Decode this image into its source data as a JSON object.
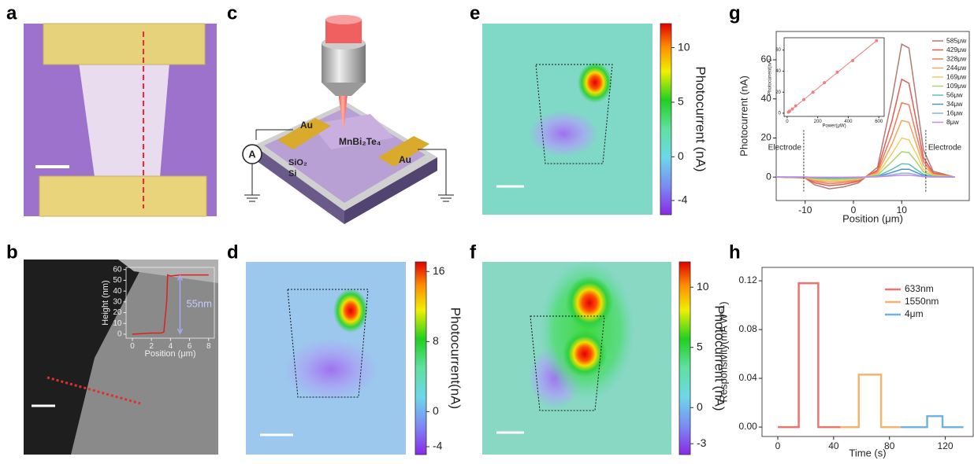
{
  "panel_labels": [
    "a",
    "b",
    "c",
    "d",
    "e",
    "f",
    "g",
    "h"
  ],
  "schematic": {
    "labels": [
      "Au",
      "Au",
      "MnBi₂Te₄",
      "SiO₂",
      "Si",
      "A"
    ]
  },
  "colorbars": [
    {
      "label": "Photocurrent(nA)",
      "lim": [
        -4.9,
        17.1
      ],
      "ticks": [
        -4,
        0,
        8,
        16
      ]
    },
    {
      "label": "Photocurrent (nA)",
      "lim": [
        -5.3,
        12.2
      ],
      "ticks": [
        -4,
        0,
        5,
        10
      ]
    },
    {
      "label": "Photocurrent (nA)",
      "lim": [
        -3.9,
        12.1
      ],
      "ticks": [
        -3,
        0,
        5,
        10
      ]
    }
  ],
  "chart_data": [
    {
      "type": "line",
      "xlabel": "Position (μm)",
      "ylabel": "Photocurrent (nA)",
      "xlim": [
        -16,
        24
      ],
      "ylim": [
        -12,
        74.5
      ],
      "xticks": [
        -10,
        0,
        10
      ],
      "yticks": [
        0,
        20,
        40,
        60
      ],
      "legend": "upper right",
      "x": [
        -16,
        -10,
        -8,
        -5,
        -2,
        1,
        5,
        8,
        10,
        11.5,
        13,
        14.5,
        16.5,
        21
      ],
      "series": [
        {
          "name": "585μw",
          "color": "#b47a74",
          "values": [
            0,
            -0.5,
            -4,
            -6,
            -5,
            -3,
            5,
            40,
            68,
            66,
            40,
            14,
            3,
            0
          ]
        },
        {
          "name": "429μw",
          "color": "#e35a58",
          "values": [
            0,
            -0.4,
            -3,
            -4.4,
            -3.7,
            -2.2,
            3.6,
            29,
            50,
            48,
            29,
            10,
            2.2,
            0
          ]
        },
        {
          "name": "328μw",
          "color": "#f27a55",
          "values": [
            0,
            -0.3,
            -2.2,
            -3.4,
            -2.8,
            -1.7,
            2.8,
            22,
            38,
            37,
            22,
            8,
            1.7,
            0
          ]
        },
        {
          "name": "244μw",
          "color": "#f5a55a",
          "values": [
            0,
            -0.2,
            -1.7,
            -2.5,
            -2.1,
            -1.3,
            2.1,
            17,
            29,
            28,
            17,
            6,
            1.3,
            0
          ]
        },
        {
          "name": "169μw",
          "color": "#efd060",
          "values": [
            0,
            -0.1,
            -1.2,
            -1.7,
            -1.5,
            -0.9,
            1.5,
            12,
            20,
            19,
            12,
            4,
            0.9,
            0
          ]
        },
        {
          "name": "109μw",
          "color": "#a6d46e",
          "values": [
            0,
            -0.1,
            -0.8,
            -1.1,
            -1,
            -0.6,
            1,
            8,
            13,
            12.5,
            8,
            2.7,
            0.6,
            0
          ]
        },
        {
          "name": "56μw",
          "color": "#5cc2b4",
          "values": [
            0,
            0,
            -0.4,
            -0.6,
            -0.5,
            -0.3,
            0.5,
            4,
            6.8,
            6.6,
            4,
            1.4,
            0.3,
            0
          ]
        },
        {
          "name": "34μw",
          "color": "#4f8fd4",
          "values": [
            0,
            0,
            -0.2,
            -0.4,
            -0.3,
            -0.2,
            0.3,
            2.4,
            4,
            4,
            2.4,
            0.8,
            0.2,
            0
          ]
        },
        {
          "name": "16μw",
          "color": "#86b6e6",
          "values": [
            0,
            0,
            -0.1,
            -0.2,
            -0.2,
            -0.1,
            0.2,
            1.2,
            2,
            2,
            1.2,
            0.4,
            0.1,
            0
          ]
        },
        {
          "name": "8μw",
          "color": "#c48ae6",
          "values": [
            0,
            0,
            -0.1,
            -0.1,
            -0.1,
            0,
            0.1,
            0.6,
            1,
            1,
            0.6,
            0.2,
            0,
            0
          ]
        }
      ],
      "annotations": [
        {
          "text": "Electrode",
          "x": -10.3
        },
        {
          "text": "Electrode",
          "x": 15
        }
      ]
    },
    {
      "type": "scatter",
      "xlabel": "Power(μW)",
      "ylabel": "Photocurrent(nA)",
      "fit": true,
      "xlim": [
        -20,
        635
      ],
      "ylim": [
        -3,
        71.7
      ],
      "xticks": [
        0,
        200,
        400,
        600
      ],
      "yticks": [
        0,
        20,
        40,
        60
      ],
      "color": "#f07f7f",
      "x": [
        8,
        16,
        34,
        56,
        109,
        169,
        244,
        328,
        429,
        585
      ],
      "values": [
        1,
        2,
        4,
        7,
        13,
        20,
        29,
        39,
        50,
        69
      ]
    },
    {
      "type": "line",
      "xlabel": "Time (s)",
      "ylabel": "Responsivity(mA W⁻¹)",
      "xlim": [
        -11.3,
        140
      ],
      "ylim": [
        -0.0077,
        0.131
      ],
      "xticks": [
        0,
        40,
        80,
        120
      ],
      "yticks": [
        {
          "value": 0,
          "label": "0.00"
        },
        0.04,
        0.08,
        0.12
      ],
      "legend": "upper right",
      "series": [
        {
          "name": "633nm",
          "color": "#ef7470",
          "x": [
            0,
            15,
            15,
            29,
            29,
            45
          ],
          "values": [
            0,
            0,
            0.118,
            0.118,
            0,
            0
          ]
        },
        {
          "name": "1550nm",
          "color": "#f6b46a",
          "x": [
            45,
            58,
            58,
            74,
            74,
            88
          ],
          "values": [
            0,
            0,
            0.043,
            0.043,
            0,
            0
          ]
        },
        {
          "name": "4μm",
          "color": "#6fb3e3",
          "x": [
            88,
            107,
            107,
            118,
            118,
            133
          ],
          "values": [
            0,
            0,
            0.009,
            0.009,
            0,
            0
          ]
        }
      ]
    },
    {
      "type": "line",
      "xlabel": "Position (μm)",
      "ylabel": "Height (nm)",
      "xlim": [
        -0.66,
        8.6
      ],
      "ylim": [
        -3.7,
        62
      ],
      "xticks": [
        0,
        2,
        4,
        6,
        8
      ],
      "yticks": [
        0,
        10,
        20,
        30,
        40,
        50,
        60
      ],
      "x": [
        0,
        1,
        2,
        3,
        3.3,
        3.6,
        3.7,
        4,
        5,
        6,
        7,
        8
      ],
      "series": [
        {
          "color": "#e0201c",
          "values": [
            0,
            0.5,
            1,
            1,
            2,
            30,
            55,
            54,
            55,
            55,
            55,
            55
          ]
        }
      ],
      "annotations": [
        {
          "text": "55nm",
          "x": 5
        }
      ]
    }
  ]
}
